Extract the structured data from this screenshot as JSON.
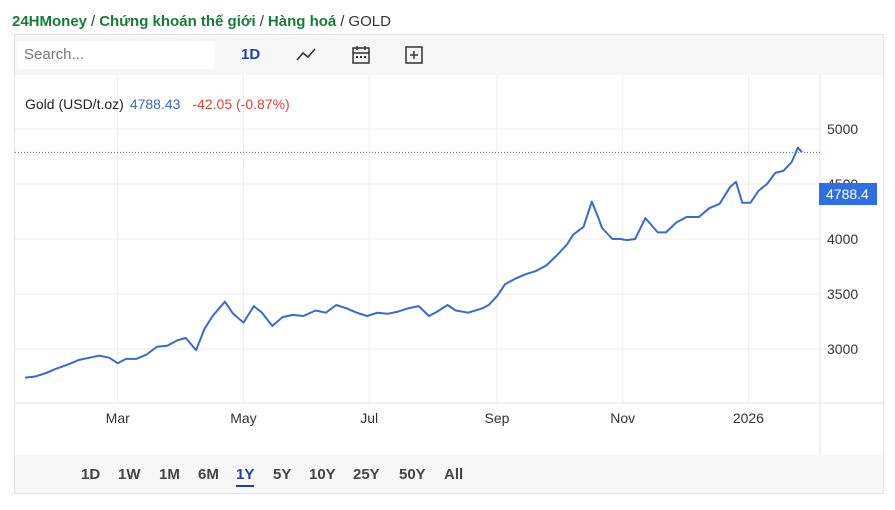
{
  "breadcrumb": {
    "site": "24HMoney",
    "section": "Chứng khoán thế giới",
    "category": "Hàng hoá",
    "current": "GOLD",
    "separator": "/"
  },
  "toolbar": {
    "search_placeholder": "Search...",
    "interval": "1D",
    "icons": [
      "line-chart-icon",
      "calendar-icon",
      "add-compare-icon"
    ]
  },
  "legend": {
    "name": "Gold (USD/t.oz)",
    "price": "4788.43",
    "change": "-42.05 (-0.87%)"
  },
  "price_tag": "4788.4",
  "ranges": [
    {
      "label": "1D",
      "active": false
    },
    {
      "label": "1W",
      "active": false
    },
    {
      "label": "1M",
      "active": false
    },
    {
      "label": "6M",
      "active": false
    },
    {
      "label": "1Y",
      "active": true
    },
    {
      "label": "5Y",
      "active": false
    },
    {
      "label": "10Y",
      "active": false
    },
    {
      "label": "25Y",
      "active": false
    },
    {
      "label": "50Y",
      "active": false
    },
    {
      "label": "All",
      "active": false
    }
  ],
  "colors": {
    "line": "#3a6bc5",
    "price_tag": "#2f6fe0",
    "negative": "#e0453a",
    "brand": "#1a7a3a",
    "active_range": "#1a3fa8"
  },
  "chart_data": {
    "type": "line",
    "y_ticks": [
      "5000",
      "4500",
      "4000",
      "3500",
      "3000"
    ],
    "x_ticks": [
      "Mar",
      "May",
      "Jul",
      "Sep",
      "Nov",
      "2026"
    ],
    "ylim": [
      2500,
      5200
    ],
    "grid": true,
    "series": [
      {
        "name": "Gold (USD/t.oz)",
        "points": [
          [
            "2025-01-15",
            2740
          ],
          [
            "2025-01-20",
            2750
          ],
          [
            "2025-01-25",
            2780
          ],
          [
            "2025-01-30",
            2820
          ],
          [
            "2025-02-05",
            2860
          ],
          [
            "2025-02-10",
            2900
          ],
          [
            "2025-02-15",
            2920
          ],
          [
            "2025-02-20",
            2940
          ],
          [
            "2025-02-25",
            2920
          ],
          [
            "2025-03-01",
            2870
          ],
          [
            "2025-03-05",
            2910
          ],
          [
            "2025-03-10",
            2910
          ],
          [
            "2025-03-15",
            2950
          ],
          [
            "2025-03-20",
            3020
          ],
          [
            "2025-03-25",
            3030
          ],
          [
            "2025-03-30",
            3080
          ],
          [
            "2025-04-03",
            3100
          ],
          [
            "2025-04-08",
            2990
          ],
          [
            "2025-04-12",
            3180
          ],
          [
            "2025-04-16",
            3300
          ],
          [
            "2025-04-22",
            3430
          ],
          [
            "2025-04-26",
            3320
          ],
          [
            "2025-05-01",
            3240
          ],
          [
            "2025-05-06",
            3390
          ],
          [
            "2025-05-10",
            3330
          ],
          [
            "2025-05-15",
            3210
          ],
          [
            "2025-05-20",
            3290
          ],
          [
            "2025-05-25",
            3310
          ],
          [
            "2025-05-30",
            3300
          ],
          [
            "2025-06-05",
            3350
          ],
          [
            "2025-06-10",
            3330
          ],
          [
            "2025-06-15",
            3400
          ],
          [
            "2025-06-20",
            3370
          ],
          [
            "2025-06-25",
            3330
          ],
          [
            "2025-06-30",
            3300
          ],
          [
            "2025-07-05",
            3330
          ],
          [
            "2025-07-10",
            3320
          ],
          [
            "2025-07-15",
            3340
          ],
          [
            "2025-07-20",
            3370
          ],
          [
            "2025-07-25",
            3390
          ],
          [
            "2025-07-30",
            3300
          ],
          [
            "2025-08-03",
            3340
          ],
          [
            "2025-08-08",
            3400
          ],
          [
            "2025-08-12",
            3350
          ],
          [
            "2025-08-18",
            3330
          ],
          [
            "2025-08-25",
            3370
          ],
          [
            "2025-08-28",
            3400
          ],
          [
            "2025-09-01",
            3480
          ],
          [
            "2025-09-05",
            3590
          ],
          [
            "2025-09-10",
            3640
          ],
          [
            "2025-09-15",
            3680
          ],
          [
            "2025-09-20",
            3710
          ],
          [
            "2025-09-25",
            3760
          ],
          [
            "2025-09-30",
            3850
          ],
          [
            "2025-10-05",
            3950
          ],
          [
            "2025-10-08",
            4040
          ],
          [
            "2025-10-13",
            4110
          ],
          [
            "2025-10-17",
            4340
          ],
          [
            "2025-10-20",
            4200
          ],
          [
            "2025-10-22",
            4100
          ],
          [
            "2025-10-27",
            4000
          ],
          [
            "2025-10-31",
            4000
          ],
          [
            "2025-11-03",
            3990
          ],
          [
            "2025-11-07",
            4000
          ],
          [
            "2025-11-12",
            4190
          ],
          [
            "2025-11-18",
            4060
          ],
          [
            "2025-11-22",
            4060
          ],
          [
            "2025-11-27",
            4150
          ],
          [
            "2025-12-02",
            4200
          ],
          [
            "2025-12-08",
            4200
          ],
          [
            "2025-12-13",
            4280
          ],
          [
            "2025-12-18",
            4320
          ],
          [
            "2025-12-23",
            4470
          ],
          [
            "2025-12-26",
            4520
          ],
          [
            "2025-12-29",
            4330
          ],
          [
            "2026-01-02",
            4330
          ],
          [
            "2026-01-06",
            4440
          ],
          [
            "2026-01-10",
            4500
          ],
          [
            "2026-01-14",
            4600
          ],
          [
            "2026-01-18",
            4620
          ],
          [
            "2026-01-22",
            4700
          ],
          [
            "2026-01-25",
            4830
          ],
          [
            "2026-01-27",
            4788
          ]
        ]
      }
    ]
  }
}
